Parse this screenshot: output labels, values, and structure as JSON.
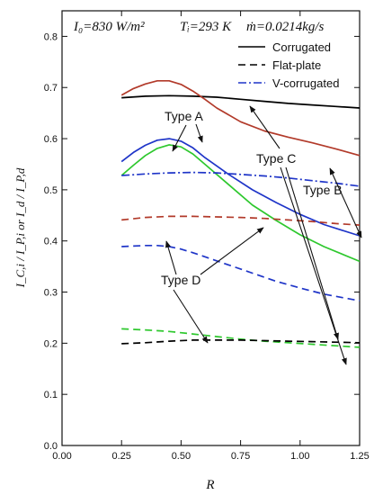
{
  "chart_data": {
    "type": "line",
    "xlabel": "R",
    "ylabel": "I_C,i / I_P,i or I_d / I_P,d",
    "xlim": [
      0.0,
      1.25
    ],
    "ylim": [
      0.0,
      0.85
    ],
    "xticks": [
      0.0,
      0.25,
      0.5,
      0.75,
      1.0,
      1.25
    ],
    "xtick_labels": [
      "0.00",
      "0.25",
      "0.50",
      "0.75",
      "1.00",
      "1.25"
    ],
    "yticks": [
      0.0,
      0.1,
      0.2,
      0.3,
      0.4,
      0.5,
      0.6,
      0.7,
      0.8
    ],
    "ytick_labels": [
      "0.0",
      "0.1",
      "0.2",
      "0.3",
      "0.4",
      "0.5",
      "0.6",
      "0.7",
      "0.8"
    ],
    "grid": false,
    "conditions": {
      "irradiance": "I₀=830 W/m²",
      "temperature": "Tᵢ=293 K",
      "mass_flow": "ṁ=0.0214kg/s"
    },
    "legend": {
      "placement": "top-right",
      "entries": [
        {
          "label": "Corrugated",
          "style": "solid",
          "color": "#000000"
        },
        {
          "label": "Flat-plate",
          "style": "dash",
          "color": "#000000"
        },
        {
          "label": "V-corrugated",
          "style": "dashdot",
          "color": "#1f35c8"
        }
      ]
    },
    "annotations": [
      "Type A",
      "Type B",
      "Type C",
      "Type D"
    ],
    "series": [
      {
        "group": "Type C",
        "style": "solid",
        "color": "#000000",
        "x": [
          0.25,
          0.35,
          0.45,
          0.55,
          0.65,
          0.75,
          0.85,
          0.95,
          1.05,
          1.15,
          1.25
        ],
        "y": [
          0.68,
          0.683,
          0.684,
          0.683,
          0.681,
          0.677,
          0.673,
          0.669,
          0.666,
          0.663,
          0.66
        ]
      },
      {
        "group": "Type A",
        "style": "solid",
        "color": "#b23a2a",
        "x": [
          0.25,
          0.3,
          0.35,
          0.4,
          0.45,
          0.5,
          0.55,
          0.6,
          0.65,
          0.75,
          0.85,
          0.95,
          1.05,
          1.15,
          1.25
        ],
        "y": [
          0.685,
          0.698,
          0.707,
          0.713,
          0.713,
          0.706,
          0.693,
          0.677,
          0.66,
          0.633,
          0.615,
          0.603,
          0.592,
          0.58,
          0.567
        ]
      },
      {
        "group": "Type A",
        "style": "solid",
        "color": "#1f35c8",
        "x": [
          0.25,
          0.3,
          0.35,
          0.4,
          0.45,
          0.5,
          0.55,
          0.6,
          0.7,
          0.8,
          0.9,
          1.0,
          1.1,
          1.25
        ],
        "y": [
          0.555,
          0.573,
          0.587,
          0.597,
          0.6,
          0.595,
          0.582,
          0.563,
          0.53,
          0.5,
          0.475,
          0.452,
          0.432,
          0.41
        ]
      },
      {
        "group": "Type A",
        "style": "solid",
        "color": "#2ec82e",
        "x": [
          0.25,
          0.3,
          0.35,
          0.4,
          0.45,
          0.5,
          0.55,
          0.6,
          0.7,
          0.8,
          0.9,
          1.0,
          1.1,
          1.25
        ],
        "y": [
          0.528,
          0.548,
          0.567,
          0.581,
          0.588,
          0.584,
          0.57,
          0.55,
          0.51,
          0.47,
          0.44,
          0.412,
          0.389,
          0.36
        ]
      },
      {
        "group": "Type B",
        "style": "dashdot",
        "color": "#1f35c8",
        "x": [
          0.25,
          0.35,
          0.45,
          0.55,
          0.65,
          0.75,
          0.85,
          0.95,
          1.05,
          1.15,
          1.25
        ],
        "y": [
          0.528,
          0.531,
          0.533,
          0.534,
          0.533,
          0.53,
          0.527,
          0.523,
          0.518,
          0.513,
          0.507
        ]
      },
      {
        "group": "Type B",
        "style": "dash",
        "color": "#b23a2a",
        "x": [
          0.25,
          0.35,
          0.45,
          0.55,
          0.65,
          0.75,
          0.85,
          0.95,
          1.05,
          1.15,
          1.25
        ],
        "y": [
          0.441,
          0.446,
          0.448,
          0.448,
          0.447,
          0.446,
          0.444,
          0.441,
          0.438,
          0.434,
          0.431
        ]
      },
      {
        "group": "Type D",
        "style": "dash",
        "color": "#1f35c8",
        "x": [
          0.25,
          0.3,
          0.35,
          0.4,
          0.45,
          0.5,
          0.55,
          0.6,
          0.7,
          0.8,
          0.9,
          1.0,
          1.1,
          1.25
        ],
        "y": [
          0.389,
          0.39,
          0.391,
          0.391,
          0.389,
          0.384,
          0.377,
          0.369,
          0.353,
          0.337,
          0.321,
          0.308,
          0.296,
          0.283
        ]
      },
      {
        "group": "Type D",
        "style": "dash",
        "color": "#2ec82e",
        "x": [
          0.25,
          0.35,
          0.45,
          0.55,
          0.65,
          0.75,
          0.85,
          0.95,
          1.05,
          1.15,
          1.25
        ],
        "y": [
          0.228,
          0.226,
          0.223,
          0.218,
          0.213,
          0.208,
          0.204,
          0.201,
          0.198,
          0.195,
          0.192
        ]
      },
      {
        "group": "Type D",
        "style": "dash",
        "color": "#000000",
        "x": [
          0.25,
          0.35,
          0.45,
          0.55,
          0.65,
          0.75,
          0.85,
          0.95,
          1.05,
          1.15,
          1.25
        ],
        "y": [
          0.199,
          0.201,
          0.204,
          0.206,
          0.206,
          0.206,
          0.205,
          0.204,
          0.203,
          0.202,
          0.201
        ]
      }
    ]
  }
}
